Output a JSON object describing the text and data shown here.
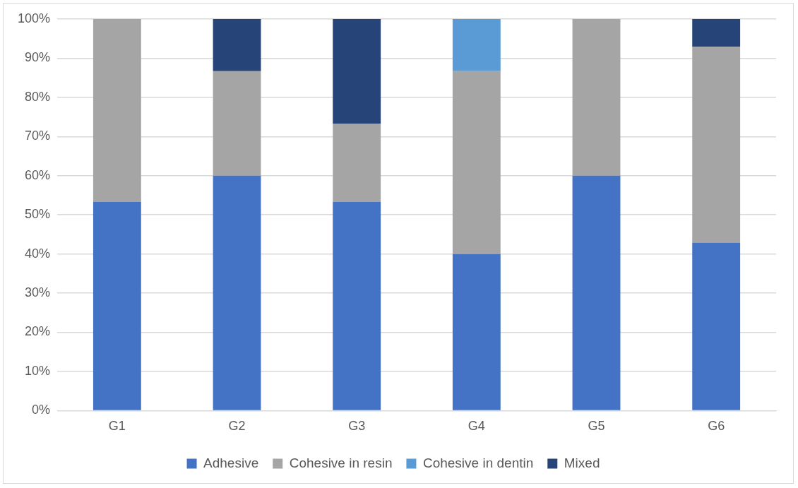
{
  "chart_data": {
    "type": "bar",
    "stacked": true,
    "categories": [
      "G1",
      "G2",
      "G3",
      "G4",
      "G5",
      "G6"
    ],
    "series": [
      {
        "name": "Adhesive",
        "color": "#4472c4",
        "values": [
          53.3,
          60,
          53.3,
          40,
          60,
          42.9
        ]
      },
      {
        "name": "Cohesive in resin",
        "color": "#a5a5a5",
        "values": [
          46.7,
          26.7,
          20,
          46.7,
          40,
          50
        ]
      },
      {
        "name": "Cohesive in dentin",
        "color": "#5b9bd5",
        "values": [
          0,
          0,
          0,
          13.3,
          0,
          0
        ]
      },
      {
        "name": "Mixed",
        "color": "#264478",
        "values": [
          0,
          13.3,
          26.7,
          0,
          0,
          7.1
        ]
      }
    ],
    "ylim": [
      0,
      100
    ],
    "yticks": [
      {
        "value": 0,
        "label": "0%"
      },
      {
        "value": 10,
        "label": "10%"
      },
      {
        "value": 20,
        "label": "20%"
      },
      {
        "value": 30,
        "label": "30%"
      },
      {
        "value": 40,
        "label": "40%"
      },
      {
        "value": 50,
        "label": "50%"
      },
      {
        "value": 60,
        "label": "60%"
      },
      {
        "value": 70,
        "label": "70%"
      },
      {
        "value": 80,
        "label": "80%"
      },
      {
        "value": 90,
        "label": "90%"
      },
      {
        "value": 100,
        "label": "100%"
      }
    ],
    "grid": "y",
    "legend": "bottom"
  }
}
